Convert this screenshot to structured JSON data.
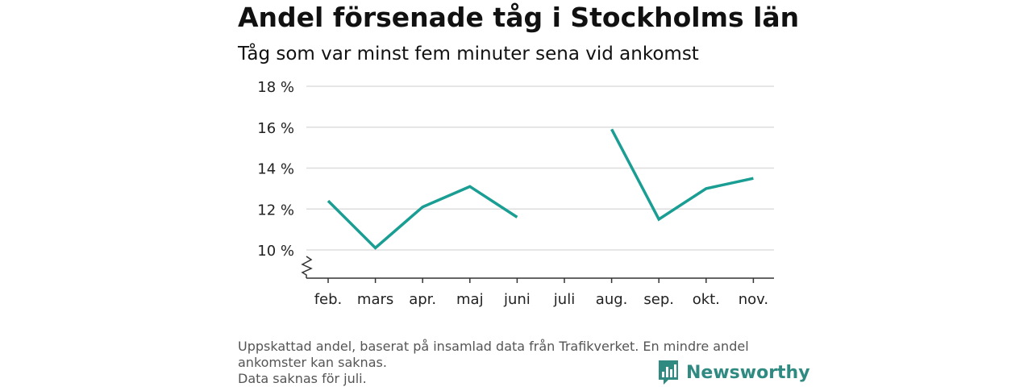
{
  "title": "Andel försenade tåg i Stockholms län",
  "subtitle": "Tåg som var minst fem minuter sena vid ankomst",
  "notes": [
    "Uppskattad andel, baserat på insamlad data från Trafikverket. En mindre andel",
    "ankomster kan saknas.",
    "Data saknas för juli."
  ],
  "logo": {
    "text": "Newsworthy"
  },
  "colors": {
    "line": "#1a9e94",
    "grid": "#dddddd",
    "axis": "#333333",
    "logo": "#2f8a82"
  },
  "chart_data": {
    "type": "line",
    "title": "Andel försenade tåg i Stockholms län",
    "subtitle": "Tåg som var minst fem minuter sena vid ankomst",
    "xlabel": "",
    "ylabel": "",
    "categories": [
      "feb.",
      "mars",
      "apr.",
      "maj",
      "juni",
      "juli",
      "aug.",
      "sep.",
      "okt.",
      "nov."
    ],
    "series": [
      {
        "values": [
          12.4,
          10.1,
          12.1,
          13.1,
          11.6,
          null,
          15.9,
          11.5,
          13.0,
          13.5
        ]
      }
    ],
    "yticks": [
      10,
      12,
      14,
      16,
      18
    ],
    "ytick_labels": [
      "10 %",
      "12 %",
      "14 %",
      "16 %",
      "18 %"
    ],
    "ylim": [
      8.6,
      18
    ],
    "axis_break": true,
    "grid": true,
    "legend": "none"
  }
}
